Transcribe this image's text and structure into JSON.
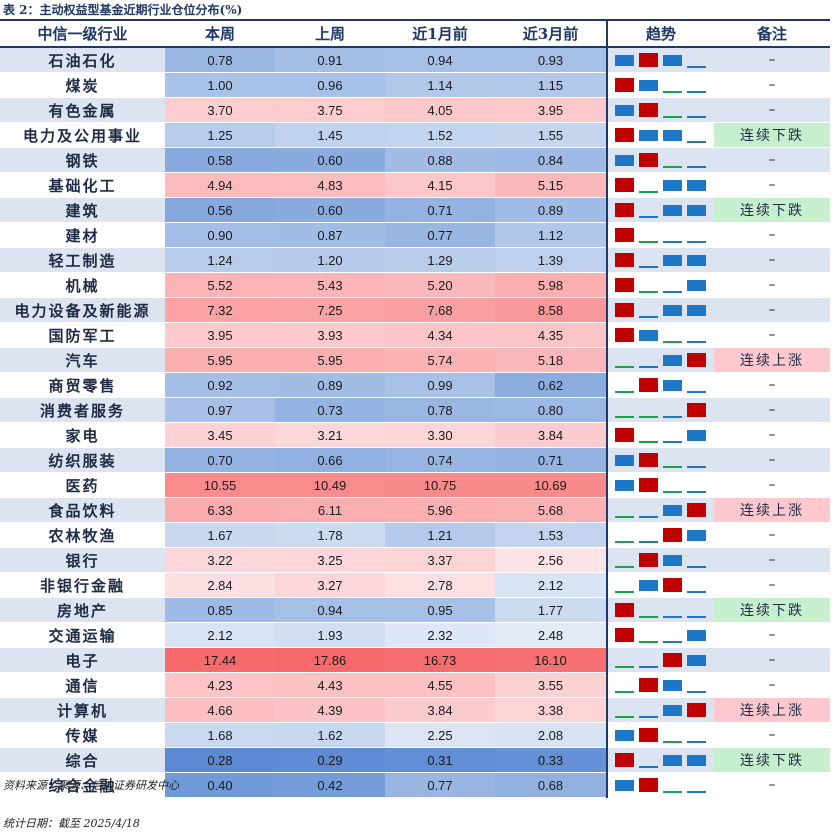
{
  "caption": "表 2：主动权益型基金近期行业仓位分布(%)",
  "headers": {
    "industry": "中信一级行业",
    "this_week": "本周",
    "last_week": "上周",
    "one_month": "近1月前",
    "three_month": "近3月前",
    "trend": "趋势",
    "note": "备注"
  },
  "rows": [
    {
      "name": "石油石化",
      "values": [
        "0.78",
        "0.91",
        "0.94",
        "0.93"
      ],
      "trend": [
        "b",
        "r",
        "b",
        "n"
      ],
      "note": "–",
      "note_type": "none"
    },
    {
      "name": "煤炭",
      "values": [
        "1.00",
        "0.96",
        "1.14",
        "1.15"
      ],
      "trend": [
        "r",
        "b",
        "g",
        "n"
      ],
      "note": "–",
      "note_type": "none"
    },
    {
      "name": "有色金属",
      "values": [
        "3.70",
        "3.75",
        "4.05",
        "3.95"
      ],
      "trend": [
        "b",
        "r",
        "g",
        "n"
      ],
      "note": "–",
      "note_type": "none"
    },
    {
      "name": "电力及公用事业",
      "values": [
        "1.25",
        "1.45",
        "1.52",
        "1.55"
      ],
      "trend": [
        "r",
        "b",
        "b",
        "n"
      ],
      "note": "连续下跌",
      "note_type": "down"
    },
    {
      "name": "钢铁",
      "values": [
        "0.58",
        "0.60",
        "0.88",
        "0.84"
      ],
      "trend": [
        "b",
        "r",
        "g",
        "n"
      ],
      "note": "–",
      "note_type": "none"
    },
    {
      "name": "基础化工",
      "values": [
        "4.94",
        "4.83",
        "4.15",
        "5.15"
      ],
      "trend": [
        "r",
        "g",
        "b",
        "b"
      ],
      "note": "–",
      "note_type": "none"
    },
    {
      "name": "建筑",
      "values": [
        "0.56",
        "0.60",
        "0.71",
        "0.89"
      ],
      "trend": [
        "r",
        "n",
        "b",
        "b"
      ],
      "note": "连续下跌",
      "note_type": "down"
    },
    {
      "name": "建材",
      "values": [
        "0.90",
        "0.87",
        "0.77",
        "1.12"
      ],
      "trend": [
        "r",
        "g",
        "n",
        "n"
      ],
      "note": "–",
      "note_type": "none"
    },
    {
      "name": "轻工制造",
      "values": [
        "1.24",
        "1.20",
        "1.29",
        "1.39"
      ],
      "trend": [
        "r",
        "n",
        "b",
        "b"
      ],
      "note": "–",
      "note_type": "none"
    },
    {
      "name": "机械",
      "values": [
        "5.52",
        "5.43",
        "5.20",
        "5.98"
      ],
      "trend": [
        "r",
        "g",
        "n",
        "b"
      ],
      "note": "–",
      "note_type": "none"
    },
    {
      "name": "电力设备及新能源",
      "values": [
        "7.32",
        "7.25",
        "7.68",
        "8.58"
      ],
      "trend": [
        "r",
        "n",
        "b",
        "b"
      ],
      "note": "–",
      "note_type": "none"
    },
    {
      "name": "国防军工",
      "values": [
        "3.95",
        "3.93",
        "4.34",
        "4.35"
      ],
      "trend": [
        "r",
        "b",
        "g",
        "n"
      ],
      "note": "–",
      "note_type": "none"
    },
    {
      "name": "汽车",
      "values": [
        "5.95",
        "5.95",
        "5.74",
        "5.18"
      ],
      "trend": [
        "g",
        "n",
        "b",
        "r"
      ],
      "note": "连续上涨",
      "note_type": "up"
    },
    {
      "name": "商贸零售",
      "values": [
        "0.92",
        "0.89",
        "0.99",
        "0.62"
      ],
      "trend": [
        "g",
        "r",
        "b",
        "n"
      ],
      "note": "–",
      "note_type": "none"
    },
    {
      "name": "消费者服务",
      "values": [
        "0.97",
        "0.73",
        "0.78",
        "0.80"
      ],
      "trend": [
        "g",
        "g",
        "n",
        "r"
      ],
      "note": "–",
      "note_type": "none"
    },
    {
      "name": "家电",
      "values": [
        "3.45",
        "3.21",
        "3.30",
        "3.84"
      ],
      "trend": [
        "r",
        "g",
        "n",
        "b"
      ],
      "note": "–",
      "note_type": "none"
    },
    {
      "name": "纺织服装",
      "values": [
        "0.70",
        "0.66",
        "0.74",
        "0.71"
      ],
      "trend": [
        "b",
        "r",
        "g",
        "n"
      ],
      "note": "–",
      "note_type": "none"
    },
    {
      "name": "医药",
      "values": [
        "10.55",
        "10.49",
        "10.75",
        "10.69"
      ],
      "trend": [
        "b",
        "r",
        "g",
        "n"
      ],
      "note": "–",
      "note_type": "none"
    },
    {
      "name": "食品饮料",
      "values": [
        "6.33",
        "6.11",
        "5.96",
        "5.68"
      ],
      "trend": [
        "g",
        "n",
        "b",
        "r"
      ],
      "note": "连续上涨",
      "note_type": "up"
    },
    {
      "name": "农林牧渔",
      "values": [
        "1.67",
        "1.78",
        "1.21",
        "1.53"
      ],
      "trend": [
        "g",
        "n",
        "r",
        "b"
      ],
      "note": "–",
      "note_type": "none"
    },
    {
      "name": "银行",
      "values": [
        "3.22",
        "3.25",
        "3.37",
        "2.56"
      ],
      "trend": [
        "g",
        "r",
        "b",
        "n"
      ],
      "note": "–",
      "note_type": "none"
    },
    {
      "name": "非银行金融",
      "values": [
        "2.84",
        "3.27",
        "2.78",
        "2.12"
      ],
      "trend": [
        "g",
        "b",
        "r",
        "n"
      ],
      "note": "–",
      "note_type": "none"
    },
    {
      "name": "房地产",
      "values": [
        "0.85",
        "0.94",
        "0.95",
        "1.77"
      ],
      "trend": [
        "r",
        "g",
        "n",
        "n"
      ],
      "note": "连续下跌",
      "note_type": "down"
    },
    {
      "name": "交通运输",
      "values": [
        "2.12",
        "1.93",
        "2.32",
        "2.48"
      ],
      "trend": [
        "r",
        "g",
        "n",
        "b"
      ],
      "note": "–",
      "note_type": "none"
    },
    {
      "name": "电子",
      "values": [
        "17.44",
        "17.86",
        "16.73",
        "16.10"
      ],
      "trend": [
        "g",
        "n",
        "r",
        "b"
      ],
      "note": "–",
      "note_type": "none"
    },
    {
      "name": "通信",
      "values": [
        "4.23",
        "4.43",
        "4.55",
        "3.55"
      ],
      "trend": [
        "g",
        "r",
        "b",
        "n"
      ],
      "note": "–",
      "note_type": "none"
    },
    {
      "name": "计算机",
      "values": [
        "4.66",
        "4.39",
        "3.84",
        "3.38"
      ],
      "trend": [
        "g",
        "n",
        "b",
        "r"
      ],
      "note": "连续上涨",
      "note_type": "up"
    },
    {
      "name": "传媒",
      "values": [
        "1.68",
        "1.62",
        "2.25",
        "2.08"
      ],
      "trend": [
        "b",
        "r",
        "g",
        "n"
      ],
      "note": "–",
      "note_type": "none"
    },
    {
      "name": "综合",
      "values": [
        "0.28",
        "0.29",
        "0.31",
        "0.33"
      ],
      "trend": [
        "r",
        "n",
        "b",
        "b"
      ],
      "note": "连续下跌",
      "note_type": "down"
    },
    {
      "name": "综合金融",
      "values": [
        "0.40",
        "0.42",
        "0.77",
        "0.68"
      ],
      "trend": [
        "b",
        "r",
        "g",
        "n"
      ],
      "note": "–",
      "note_type": "none"
    }
  ],
  "footer": {
    "source": "资料来源：聚源、信达证券研发中心",
    "date": "统计日期：截至 2025/4/18"
  },
  "colors": {
    "low": "#5b8ad3",
    "mid": "#fde7e9",
    "high": "#f7696b",
    "header_line": "#1f3864",
    "note_up": "#ffc7ce",
    "note_down": "#c6efce"
  }
}
